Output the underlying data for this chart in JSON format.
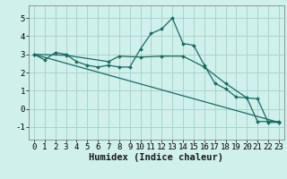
{
  "xlabel": "Humidex (Indice chaleur)",
  "bg_color": "#cff0eb",
  "grid_color": "#aad4ce",
  "line_color": "#1a6b60",
  "xlim": [
    -0.5,
    23.5
  ],
  "ylim": [
    -1.7,
    5.7
  ],
  "xticks": [
    0,
    1,
    2,
    3,
    4,
    5,
    6,
    7,
    8,
    9,
    10,
    11,
    12,
    13,
    14,
    15,
    16,
    17,
    18,
    19,
    20,
    21,
    22,
    23
  ],
  "yticks": [
    -1,
    0,
    1,
    2,
    3,
    4,
    5
  ],
  "line1_x": [
    0,
    1,
    2,
    3,
    4,
    5,
    6,
    7,
    8,
    9,
    10,
    11,
    12,
    13,
    14,
    15,
    16,
    17,
    18,
    19,
    20,
    21,
    22,
    23
  ],
  "line1_y": [
    3.0,
    2.7,
    3.1,
    3.0,
    2.6,
    2.4,
    2.3,
    2.4,
    2.3,
    2.3,
    3.3,
    4.15,
    4.4,
    5.0,
    3.6,
    3.5,
    2.4,
    1.4,
    1.1,
    0.65,
    0.6,
    0.55,
    -0.75,
    -0.75
  ],
  "line2_x": [
    0,
    3,
    7,
    8,
    10,
    12,
    14,
    16,
    18,
    20,
    21,
    22,
    23
  ],
  "line2_y": [
    3.0,
    2.95,
    2.6,
    2.9,
    2.85,
    2.9,
    2.9,
    2.3,
    1.4,
    0.6,
    -0.7,
    -0.7,
    -0.7
  ],
  "line3_x": [
    0,
    23
  ],
  "line3_y": [
    3.0,
    -0.75
  ],
  "tick_fontsize": 6.5,
  "xlabel_fontsize": 7.5
}
